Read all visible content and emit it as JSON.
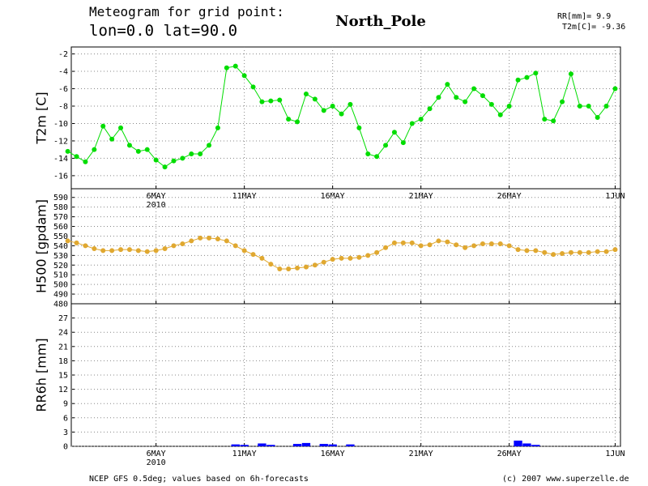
{
  "header": {
    "line1": "Meteogram for grid point:",
    "line2": "lon=0.0 lat=90.0",
    "place": "North_Pole",
    "rr": "RR[mm]= 9.9",
    "t2m": "T2m[C]= -9.36"
  },
  "footer": {
    "left": "NCEP GFS 0.5deg; values based on 6h-forecasts",
    "right": "(c) 2007 www.superzelle.de"
  },
  "chart_data": [
    {
      "type": "line",
      "ylabel": "T2m [C]",
      "color": "#00dd00",
      "annotation": "2010",
      "x": [
        0,
        0.5,
        1,
        1.5,
        2,
        2.5,
        3,
        3.5,
        4,
        4.5,
        5,
        5.5,
        6,
        6.5,
        7,
        7.5,
        8,
        8.5,
        9,
        9.5,
        10,
        10.5,
        11,
        11.5,
        12,
        12.5,
        13,
        13.5,
        14,
        14.5,
        15,
        15.5,
        16,
        16.5,
        17,
        17.5,
        18,
        18.5,
        19,
        19.5,
        20,
        20.5,
        21,
        21.5,
        22,
        22.5,
        23,
        23.5,
        24,
        24.5,
        25,
        25.5,
        26,
        26.5,
        27,
        27.5,
        28,
        28.5,
        29,
        29.5,
        30,
        30.5,
        31
      ],
      "values": [
        -13.2,
        -13.8,
        -14.4,
        -13,
        -10.3,
        -11.8,
        -10.5,
        -12.5,
        -13.2,
        -13,
        -14.2,
        -15,
        -14.3,
        -14,
        -13.5,
        -13.5,
        -12.5,
        -10.5,
        -3.6,
        -3.4,
        -4.5,
        -5.8,
        -7.5,
        -7.4,
        -7.3,
        -9.5,
        -9.8,
        -6.6,
        -7.2,
        -8.5,
        -8,
        -8.9,
        -7.8,
        -10.5,
        -13.5,
        -13.8,
        -12.5,
        -11,
        -12.2,
        -10,
        -9.5,
        -8.3,
        -7,
        -5.5,
        -7,
        -7.5,
        -6,
        -6.8,
        -7.8,
        -9,
        -8,
        -5,
        -4.7,
        -4.2,
        -9.5,
        -9.7,
        -7.5,
        -4.3,
        -8,
        -8,
        -9.3,
        -8,
        -6
      ],
      "xlim": [
        0.2,
        31.3
      ],
      "xticks": [
        {
          "value": 5,
          "label": "6MAY"
        },
        {
          "value": 10,
          "label": "11MAY"
        },
        {
          "value": 15,
          "label": "16MAY"
        },
        {
          "value": 20,
          "label": "21MAY"
        },
        {
          "value": 25,
          "label": "26MAY"
        },
        {
          "value": 31,
          "label": "1JUN"
        }
      ],
      "ylim": [
        -17.5,
        -1.2
      ],
      "yticks": [
        -16,
        -14,
        -12,
        -10,
        -8,
        -6,
        -4,
        -2
      ],
      "grid": true
    },
    {
      "type": "line",
      "ylabel": "H500 [gpdam]",
      "color": "#e0a830",
      "x": [
        0,
        0.5,
        1,
        1.5,
        2,
        2.5,
        3,
        3.5,
        4,
        4.5,
        5,
        5.5,
        6,
        6.5,
        7,
        7.5,
        8,
        8.5,
        9,
        9.5,
        10,
        10.5,
        11,
        11.5,
        12,
        12.5,
        13,
        13.5,
        14,
        14.5,
        15,
        15.5,
        16,
        16.5,
        17,
        17.5,
        18,
        18.5,
        19,
        19.5,
        20,
        20.5,
        21,
        21.5,
        22,
        22.5,
        23,
        23.5,
        24,
        24.5,
        25,
        25.5,
        26,
        26.5,
        27,
        27.5,
        28,
        28.5,
        29,
        29.5,
        30,
        30.5,
        31
      ],
      "values": [
        545,
        543,
        540,
        537,
        535,
        535,
        536,
        536,
        535,
        534,
        535,
        537,
        540,
        542,
        545,
        548,
        548,
        547,
        545,
        540,
        535,
        531,
        527,
        521,
        516,
        516,
        517,
        518,
        520,
        523,
        526,
        527,
        527,
        528,
        530,
        533,
        538,
        543,
        543,
        543,
        540,
        541,
        545,
        544,
        541,
        538,
        540,
        542,
        542,
        542,
        540,
        536,
        535,
        535,
        533,
        531,
        532,
        533,
        533,
        533,
        534,
        534,
        536
      ],
      "xlim": [
        0.2,
        31.3
      ],
      "xticks": [
        {
          "value": 5,
          "label": "6MAY"
        },
        {
          "value": 10,
          "label": "11MAY"
        },
        {
          "value": 15,
          "label": "16MAY"
        },
        {
          "value": 20,
          "label": "21MAY"
        },
        {
          "value": 25,
          "label": "26MAY"
        },
        {
          "value": 31,
          "label": "1JUN"
        }
      ],
      "ylim": [
        480,
        599
      ],
      "yticks": [
        480,
        490,
        500,
        510,
        520,
        530,
        540,
        550,
        560,
        570,
        580,
        590
      ],
      "grid": true
    },
    {
      "type": "bar",
      "ylabel": "RR6h [mm]",
      "color": "#0000ff",
      "annotation": "2010",
      "x": [
        0,
        0.5,
        1,
        1.5,
        2,
        2.5,
        3,
        3.5,
        4,
        4.5,
        5,
        5.5,
        6,
        6.5,
        7,
        7.5,
        8,
        8.5,
        9,
        9.5,
        10,
        10.5,
        11,
        11.5,
        12,
        12.5,
        13,
        13.5,
        14,
        14.5,
        15,
        15.5,
        16,
        16.5,
        17,
        17.5,
        18,
        18.5,
        19,
        19.5,
        20,
        20.5,
        21,
        21.5,
        22,
        22.5,
        23,
        23.5,
        24,
        24.5,
        25,
        25.5,
        26,
        26.5,
        27,
        27.5,
        28,
        28.5,
        29,
        29.5,
        30,
        30.5,
        31
      ],
      "values": [
        0,
        0,
        0,
        0,
        0,
        0,
        0,
        0,
        0,
        0,
        0,
        0,
        0,
        0,
        0,
        0,
        0,
        0,
        0,
        0.4,
        0.3,
        0,
        0.6,
        0.3,
        0,
        0,
        0.5,
        0.7,
        0,
        0.5,
        0.4,
        0,
        0.4,
        0,
        0,
        0,
        0,
        0,
        0,
        0,
        0,
        0,
        0,
        0,
        0,
        0,
        0,
        0,
        0,
        0,
        0,
        1.2,
        0.6,
        0.3,
        0,
        0,
        0,
        0,
        0,
        0,
        0,
        0,
        0
      ],
      "xlim": [
        0.2,
        31.3
      ],
      "xticks": [
        {
          "value": 5,
          "label": "6MAY"
        },
        {
          "value": 10,
          "label": "11MAY"
        },
        {
          "value": 15,
          "label": "16MAY"
        },
        {
          "value": 20,
          "label": "21MAY"
        },
        {
          "value": 25,
          "label": "26MAY"
        },
        {
          "value": 31,
          "label": "1JUN"
        }
      ],
      "ylim": [
        0,
        30
      ],
      "yticks": [
        0,
        3,
        6,
        9,
        12,
        15,
        18,
        21,
        24,
        27
      ],
      "grid": true
    }
  ]
}
